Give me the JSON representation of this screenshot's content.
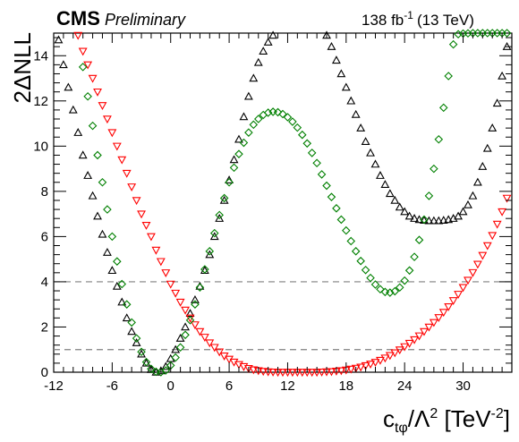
{
  "header": {
    "experiment": "CMS",
    "status": "Preliminary",
    "lumi_value": "138 fb",
    "lumi_exponent": "-1",
    "energy": "(13 TeV)"
  },
  "axes": {
    "x_title_base": "c",
    "x_title_sub": "tφ",
    "x_title_mid": "/Λ",
    "x_title_sup": "2",
    "x_title_unit_open": " [TeV",
    "x_title_unit_sup": "-2",
    "x_title_unit_close": "]",
    "y_title": "2ΔNLL"
  },
  "chart_data": {
    "type": "scatter",
    "xlim": [
      -12,
      35
    ],
    "ylim": [
      0,
      15
    ],
    "x_ticks": [
      -12,
      -6,
      0,
      6,
      12,
      18,
      24,
      30
    ],
    "y_ticks": [
      0,
      2,
      4,
      6,
      8,
      10,
      12,
      14
    ],
    "reference_lines": [
      1,
      4
    ],
    "grid": false,
    "legend": "none",
    "series": [
      {
        "marker": "triangle-up-open",
        "color": "#000000",
        "x": [
          -11.5,
          -11.0,
          -10.5,
          -10.0,
          -9.5,
          -9.0,
          -8.5,
          -8.0,
          -7.5,
          -7.0,
          -6.5,
          -6.0,
          -5.5,
          -5.0,
          -4.5,
          -4.0,
          -3.5,
          -3.0,
          -2.5,
          -2.0,
          -1.5,
          -1.0,
          -0.5,
          0.0,
          0.5,
          1.0,
          1.5,
          2.0,
          2.5,
          3.0,
          3.5,
          4.0,
          4.5,
          5.0,
          5.5,
          6.0,
          6.5,
          7.0,
          7.5,
          8.0,
          8.5,
          9.0,
          9.5,
          10.0,
          10.5,
          16.0,
          16.5,
          17.0,
          17.5,
          18.0,
          18.5,
          19.0,
          19.5,
          20.0,
          20.5,
          21.0,
          21.5,
          22.0,
          22.5,
          23.0,
          23.5,
          24.0,
          24.5,
          25.0,
          25.5,
          26.0,
          26.5,
          27.0,
          27.5,
          28.0,
          28.5,
          29.0,
          29.5,
          30.0,
          30.5,
          31.0,
          31.5,
          32.0,
          32.5,
          33.0,
          33.5,
          34.0,
          34.5
        ],
        "y": [
          14.7,
          13.6,
          12.6,
          11.6,
          10.6,
          9.6,
          8.7,
          7.8,
          6.9,
          6.1,
          5.3,
          4.5,
          3.8,
          3.1,
          2.4,
          1.8,
          1.3,
          0.8,
          0.4,
          0.12,
          0.0,
          0.06,
          0.25,
          0.6,
          1.0,
          1.5,
          2.0,
          2.6,
          3.2,
          3.8,
          4.5,
          5.2,
          6.0,
          6.8,
          7.6,
          8.5,
          9.4,
          10.3,
          11.3,
          12.2,
          13.0,
          13.7,
          14.2,
          14.6,
          14.9,
          14.9,
          14.4,
          13.8,
          13.2,
          12.6,
          12.0,
          11.4,
          10.8,
          10.2,
          9.7,
          9.2,
          8.7,
          8.3,
          7.9,
          7.6,
          7.3,
          7.1,
          6.9,
          6.8,
          6.75,
          6.72,
          6.7,
          6.7,
          6.7,
          6.72,
          6.75,
          6.8,
          6.9,
          7.1,
          7.4,
          7.8,
          8.4,
          9.1,
          9.9,
          10.8,
          11.9,
          13.1,
          14.4
        ]
      },
      {
        "marker": "triangle-down-open",
        "color": "#ff0000",
        "x": [
          -9.5,
          -9.0,
          -8.5,
          -8.0,
          -7.5,
          -7.0,
          -6.5,
          -6.0,
          -5.5,
          -5.0,
          -4.5,
          -4.0,
          -3.5,
          -3.0,
          -2.5,
          -2.0,
          -1.5,
          -1.0,
          -0.5,
          0.0,
          0.5,
          1.0,
          1.5,
          2.0,
          2.5,
          3.0,
          3.5,
          4.0,
          4.5,
          5.0,
          5.5,
          6.0,
          6.5,
          7.0,
          7.5,
          8.0,
          8.5,
          9.0,
          9.5,
          10.0,
          10.5,
          11.0,
          11.5,
          12.0,
          12.5,
          13.0,
          13.5,
          14.0,
          14.5,
          15.0,
          15.5,
          16.0,
          16.5,
          17.0,
          17.5,
          18.0,
          18.5,
          19.0,
          19.5,
          20.0,
          20.5,
          21.0,
          21.5,
          22.0,
          22.5,
          23.0,
          23.5,
          24.0,
          24.5,
          25.0,
          25.5,
          26.0,
          26.5,
          27.0,
          27.5,
          28.0,
          28.5,
          29.0,
          29.5,
          30.0,
          30.5,
          31.0,
          31.5,
          32.0,
          32.5,
          33.0,
          33.5,
          34.0,
          34.5
        ],
        "y": [
          14.9,
          14.2,
          13.6,
          13.0,
          12.4,
          11.8,
          11.2,
          10.6,
          10.0,
          9.4,
          8.8,
          8.2,
          7.6,
          7.0,
          6.5,
          6.0,
          5.4,
          4.9,
          4.4,
          3.9,
          3.5,
          3.1,
          2.75,
          2.4,
          2.1,
          1.8,
          1.55,
          1.3,
          1.1,
          0.9,
          0.72,
          0.58,
          0.45,
          0.34,
          0.25,
          0.17,
          0.11,
          0.07,
          0.04,
          0.02,
          0.01,
          0.0,
          0.0,
          0.0,
          0.0,
          0.0,
          0.0,
          0.0,
          0.0,
          0.0,
          0.01,
          0.02,
          0.03,
          0.05,
          0.07,
          0.1,
          0.14,
          0.18,
          0.23,
          0.29,
          0.36,
          0.44,
          0.53,
          0.63,
          0.74,
          0.86,
          0.99,
          1.13,
          1.28,
          1.44,
          1.61,
          1.8,
          2.0,
          2.2,
          2.42,
          2.65,
          2.9,
          3.17,
          3.45,
          3.75,
          4.07,
          4.41,
          4.78,
          5.17,
          5.6,
          6.05,
          6.55,
          7.1,
          7.7
        ]
      },
      {
        "marker": "diamond-open",
        "color": "#008000",
        "x": [
          -9.0,
          -8.5,
          -8.0,
          -7.5,
          -7.0,
          -6.5,
          -6.0,
          -5.5,
          -5.0,
          -4.5,
          -4.0,
          -3.5,
          -3.0,
          -2.5,
          -2.0,
          -1.5,
          -1.0,
          -0.5,
          0.0,
          0.5,
          1.0,
          1.5,
          2.0,
          2.5,
          3.0,
          3.5,
          4.0,
          4.5,
          5.0,
          5.5,
          6.0,
          6.5,
          7.0,
          7.5,
          8.0,
          8.5,
          9.0,
          9.5,
          10.0,
          10.5,
          11.0,
          11.5,
          12.0,
          12.5,
          13.0,
          13.5,
          14.0,
          14.5,
          15.0,
          15.5,
          16.0,
          16.5,
          17.0,
          17.5,
          18.0,
          18.5,
          19.0,
          19.5,
          20.0,
          20.5,
          21.0,
          21.5,
          22.0,
          22.5,
          23.0,
          23.5,
          24.0,
          24.5,
          25.0,
          25.5,
          26.0,
          26.5,
          27.0,
          27.5,
          28.0,
          28.5,
          29.0,
          29.5,
          30.0,
          30.5,
          31.0,
          31.5,
          32.0,
          32.5,
          33.0,
          33.5,
          34.0,
          34.5
        ],
        "y": [
          13.5,
          12.2,
          10.9,
          9.6,
          8.4,
          7.2,
          6.0,
          4.9,
          3.9,
          3.0,
          2.2,
          1.5,
          0.9,
          0.45,
          0.15,
          0.02,
          0.0,
          0.08,
          0.3,
          0.65,
          1.1,
          1.65,
          2.3,
          3.0,
          3.75,
          4.55,
          5.35,
          6.15,
          6.95,
          7.7,
          8.4,
          9.05,
          9.65,
          10.15,
          10.6,
          10.95,
          11.2,
          11.38,
          11.48,
          11.52,
          11.5,
          11.42,
          11.28,
          11.08,
          10.82,
          10.5,
          10.12,
          9.7,
          9.25,
          8.75,
          8.25,
          7.75,
          7.25,
          6.75,
          6.27,
          5.8,
          5.35,
          4.92,
          4.52,
          4.17,
          3.88,
          3.67,
          3.55,
          3.52,
          3.58,
          3.75,
          4.05,
          4.5,
          5.1,
          5.85,
          6.75,
          7.8,
          9.0,
          10.3,
          11.7,
          13.1,
          14.5,
          14.95,
          14.98,
          14.99,
          15.0,
          15.0,
          15.0,
          15.0,
          15.0,
          15.0,
          15.0,
          15.0
        ]
      }
    ]
  }
}
